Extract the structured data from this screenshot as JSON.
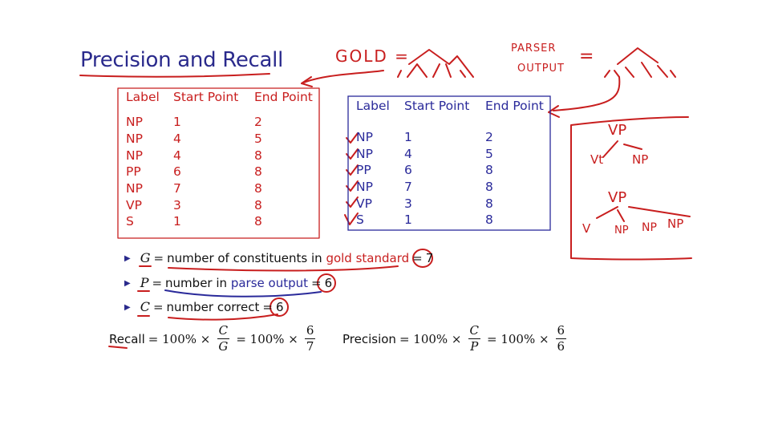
{
  "slide": {
    "title": "Precision and Recall"
  },
  "gold_table": {
    "headers": [
      "Label",
      "Start Point",
      "End Point"
    ],
    "rows": [
      [
        "NP",
        "1",
        "2"
      ],
      [
        "NP",
        "4",
        "5"
      ],
      [
        "NP",
        "4",
        "8"
      ],
      [
        "PP",
        "6",
        "8"
      ],
      [
        "NP",
        "7",
        "8"
      ],
      [
        "VP",
        "3",
        "8"
      ],
      [
        "S",
        "1",
        "8"
      ]
    ]
  },
  "parse_table": {
    "headers": [
      "Label",
      "Start Point",
      "End Point"
    ],
    "rows": [
      [
        "NP",
        "1",
        "2"
      ],
      [
        "NP",
        "4",
        "5"
      ],
      [
        "PP",
        "6",
        "8"
      ],
      [
        "NP",
        "7",
        "8"
      ],
      [
        "VP",
        "3",
        "8"
      ],
      [
        "S",
        "1",
        "8"
      ]
    ]
  },
  "bullets": {
    "g": {
      "var": "G",
      "eq": "=",
      "text": "number of constituents in",
      "highlight": "gold standard",
      "eq2": "=",
      "value": "7"
    },
    "p": {
      "var": "P",
      "eq": "=",
      "text": "number in",
      "highlight": "parse output",
      "eq2": "=",
      "value": "6"
    },
    "c": {
      "var": "C",
      "eq": "=",
      "text": "number correct",
      "eq2": "=",
      "value": "6"
    }
  },
  "recall": {
    "label": "Recall",
    "eq1": "= 100% ×",
    "frac1_num": "C",
    "frac1_den": "G",
    "eq2": "= 100% ×",
    "frac2_num": "6",
    "frac2_den": "7"
  },
  "precision": {
    "label": "Precision",
    "eq1": "= 100% ×",
    "frac1_num": "C",
    "frac1_den": "P",
    "eq2": "= 100% ×",
    "frac2_num": "6",
    "frac2_den": "6"
  },
  "handwriting": {
    "gold_eq": "GOLD =",
    "parser_line1": "PARSER",
    "parser_line2": "OUTPUT",
    "parser_eq": "=",
    "vp1": "VP",
    "vt": "Vt",
    "np1": "NP",
    "vp2": "VP",
    "v": "V",
    "np2": "NP",
    "np3": "NP",
    "np4": "NP"
  },
  "colors": {
    "title": "#2a2a8c",
    "gold": "#c81e1e",
    "parse": "#2a2a9a",
    "ink_red": "#c81e1e"
  }
}
